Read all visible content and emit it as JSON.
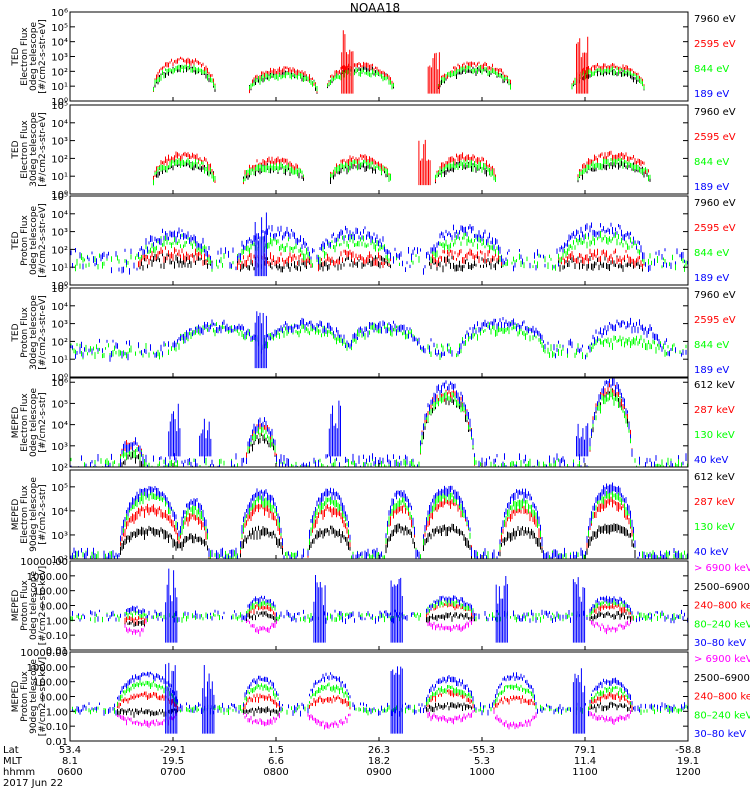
{
  "title": "NOAA18",
  "colors": {
    "black": "#000000",
    "red": "#ff0000",
    "green": "#00ff00",
    "blue": "#0000ff",
    "magenta": "#ff00ff"
  },
  "chart_data": [
    {
      "type": "line",
      "scale": "log",
      "ylabel": [
        "TED",
        "Electron Flux",
        "0deg telescope",
        "[#/cm2-s-str-eV]"
      ],
      "yticks": [
        "10⁰",
        "10¹",
        "10²",
        "10³",
        "10⁴",
        "10⁵",
        "10⁶"
      ],
      "ylim_log10": [
        0,
        6
      ],
      "series": [
        {
          "name": "7960 eV",
          "color": "black"
        },
        {
          "name": "2595 eV",
          "color": "red"
        },
        {
          "name": "844 eV",
          "color": "green"
        },
        {
          "name": "189 eV",
          "color": "blue"
        }
      ],
      "arches": [
        {
          "x": 0.185,
          "w": 0.05,
          "peak": [
            2.3,
            2.9,
            2.4,
            0
          ]
        },
        {
          "x": 0.345,
          "w": 0.055,
          "peak": [
            2.0,
            2.2,
            1.9,
            0
          ]
        },
        {
          "x": 0.47,
          "w": 0.055,
          "peak": [
            2.3,
            2.5,
            2.1,
            0
          ]
        },
        {
          "x": 0.655,
          "w": 0.06,
          "peak": [
            2.2,
            2.6,
            2.3,
            0
          ]
        },
        {
          "x": 0.87,
          "w": 0.06,
          "peak": [
            2.1,
            2.5,
            2.2,
            0
          ]
        }
      ],
      "spikes": [
        {
          "x": 0.45,
          "level": 4.8,
          "color": "red"
        },
        {
          "x": 0.83,
          "level": 5.0,
          "color": "red"
        },
        {
          "x": 0.59,
          "level": 3.6,
          "color": "red"
        }
      ],
      "floor": null,
      "noise": 0.3
    },
    {
      "type": "line",
      "scale": "log",
      "ylabel": [
        "TED",
        "Electron Flux",
        "30deg telescope",
        "[#/cm2-s-str-eV]"
      ],
      "yticks": [
        "10⁰",
        "10¹",
        "10²",
        "10³",
        "10⁴",
        "10⁵"
      ],
      "ylim_log10": [
        0,
        5
      ],
      "series": [
        {
          "name": "7960 eV",
          "color": "black"
        },
        {
          "name": "2595 eV",
          "color": "red"
        },
        {
          "name": "844 eV",
          "color": "green"
        },
        {
          "name": "189 eV",
          "color": "blue"
        }
      ],
      "arches": [
        {
          "x": 0.185,
          "w": 0.05,
          "peak": [
            1.8,
            2.3,
            1.9,
            0
          ]
        },
        {
          "x": 0.33,
          "w": 0.05,
          "peak": [
            1.6,
            2.0,
            1.7,
            0
          ]
        },
        {
          "x": 0.47,
          "w": 0.05,
          "peak": [
            1.7,
            2.1,
            1.8,
            0
          ]
        },
        {
          "x": 0.64,
          "w": 0.05,
          "peak": [
            1.7,
            2.2,
            1.8,
            0
          ]
        },
        {
          "x": 0.88,
          "w": 0.06,
          "peak": [
            1.8,
            2.3,
            1.9,
            0
          ]
        }
      ],
      "spikes": [
        {
          "x": 0.575,
          "level": 3.2,
          "color": "red"
        }
      ],
      "floor": null,
      "noise": 0.3
    },
    {
      "type": "line",
      "scale": "log",
      "ylabel": [
        "TED",
        "Proton Flux",
        "0deg telescope",
        "[#/cm2-s-str-eV]"
      ],
      "yticks": [
        "10⁰",
        "10¹",
        "10²",
        "10³",
        "10⁴",
        "10⁵"
      ],
      "ylim_log10": [
        0,
        5
      ],
      "series": [
        {
          "name": "7960 eV",
          "color": "black"
        },
        {
          "name": "2595 eV",
          "color": "red"
        },
        {
          "name": "844 eV",
          "color": "green"
        },
        {
          "name": "189 eV",
          "color": "blue"
        }
      ],
      "arches": [
        {
          "x": 0.17,
          "w": 0.06,
          "peak": [
            1.5,
            1.9,
            2.6,
            3.0
          ]
        },
        {
          "x": 0.33,
          "w": 0.06,
          "peak": [
            1.3,
            1.6,
            2.5,
            3.1
          ]
        },
        {
          "x": 0.46,
          "w": 0.06,
          "peak": [
            1.4,
            1.7,
            2.6,
            3.1
          ]
        },
        {
          "x": 0.64,
          "w": 0.06,
          "peak": [
            1.4,
            1.8,
            2.7,
            3.2
          ]
        },
        {
          "x": 0.86,
          "w": 0.07,
          "peak": [
            1.4,
            1.8,
            2.8,
            3.3
          ]
        }
      ],
      "spikes": [
        {
          "x": 0.31,
          "level": 4.2,
          "color": "blue"
        }
      ],
      "floor": 1.3,
      "noise": 0.6
    },
    {
      "type": "line",
      "scale": "log",
      "ylabel": [
        "TED",
        "Proton Flux",
        "30deg telescope",
        "[#/cm2-s-str-eV]"
      ],
      "yticks": [
        "10⁰",
        "10¹",
        "10²",
        "10³",
        "10⁴",
        "10⁵"
      ],
      "ylim_log10": [
        0,
        5
      ],
      "series": [
        {
          "name": "7960 eV",
          "color": "black"
        },
        {
          "name": "2595 eV",
          "color": "red"
        },
        {
          "name": "844 eV",
          "color": "green"
        },
        {
          "name": "189 eV",
          "color": "blue"
        }
      ],
      "arches": [
        {
          "x": 0.24,
          "w": 0.07,
          "peak": [
            0,
            0,
            2.9,
            3.0
          ]
        },
        {
          "x": 0.38,
          "w": 0.07,
          "peak": [
            0,
            0,
            2.8,
            3.1
          ]
        },
        {
          "x": 0.51,
          "w": 0.06,
          "peak": [
            0,
            0,
            2.9,
            3.0
          ]
        },
        {
          "x": 0.7,
          "w": 0.07,
          "peak": [
            0,
            0,
            2.9,
            3.2
          ]
        },
        {
          "x": 0.9,
          "w": 0.06,
          "peak": [
            0,
            0,
            2.2,
            3.1
          ]
        }
      ],
      "spikes": [
        {
          "x": 0.31,
          "level": 4.0,
          "color": "blue"
        }
      ],
      "floor": 1.5,
      "noise": 0.5
    },
    {
      "type": "line",
      "scale": "log",
      "ylabel": [
        "MEPED",
        "Electron Flux",
        "0deg telescope",
        "[#/cm2-s-str]"
      ],
      "yticks": [
        "10²",
        "10³",
        "10⁴",
        "10⁵",
        "10⁶"
      ],
      "ylim_log10": [
        2,
        6.2
      ],
      "series": [
        {
          "name": "612 keV",
          "color": "black"
        },
        {
          "name": "287 keV",
          "color": "red"
        },
        {
          "name": "130 keV",
          "color": "green"
        },
        {
          "name": "40 keV",
          "color": "blue"
        }
      ],
      "arches": [
        {
          "x": 0.1,
          "w": 0.02,
          "peak": [
            2.6,
            3.2,
            2.9,
            3.3
          ]
        },
        {
          "x": 0.31,
          "w": 0.025,
          "peak": [
            3.5,
            4.0,
            3.8,
            4.2
          ]
        },
        {
          "x": 0.61,
          "w": 0.045,
          "peak": [
            5.4,
            5.6,
            5.4,
            5.9
          ]
        },
        {
          "x": 0.875,
          "w": 0.035,
          "peak": [
            5.6,
            5.8,
            5.5,
            6.1
          ]
        }
      ],
      "spikes": [
        {
          "x": 0.17,
          "level": 5.0,
          "color": "blue"
        },
        {
          "x": 0.43,
          "level": 5.2,
          "color": "blue"
        },
        {
          "x": 0.22,
          "level": 4.3,
          "color": "blue"
        },
        {
          "x": 0.83,
          "level": 4.2,
          "color": "blue"
        }
      ],
      "floor": 2.1,
      "noise": 0.4
    },
    {
      "type": "line",
      "scale": "log",
      "ylabel": [
        "MEPED",
        "Electron Flux",
        "90deg telescope",
        "[#/cm2-s-str]"
      ],
      "yticks": [
        "10²",
        "10³",
        "10⁴",
        "10⁵"
      ],
      "ylim_log10": [
        2,
        5.7
      ],
      "series": [
        {
          "name": "612 keV",
          "color": "black"
        },
        {
          "name": "287 keV",
          "color": "red"
        },
        {
          "name": "130 keV",
          "color": "green"
        },
        {
          "name": "40 keV",
          "color": "blue"
        }
      ],
      "arches": [
        {
          "x": 0.13,
          "w": 0.05,
          "peak": [
            3.3,
            4.2,
            4.8,
            5.0
          ]
        },
        {
          "x": 0.2,
          "w": 0.025,
          "peak": [
            3.0,
            3.9,
            4.2,
            4.5
          ]
        },
        {
          "x": 0.31,
          "w": 0.035,
          "peak": [
            3.3,
            4.3,
            4.6,
            4.9
          ]
        },
        {
          "x": 0.42,
          "w": 0.035,
          "peak": [
            3.3,
            4.2,
            4.5,
            4.9
          ]
        },
        {
          "x": 0.535,
          "w": 0.025,
          "peak": [
            3.4,
            4.3,
            4.5,
            4.9
          ]
        },
        {
          "x": 0.61,
          "w": 0.04,
          "peak": [
            3.4,
            4.5,
            4.8,
            5.0
          ]
        },
        {
          "x": 0.73,
          "w": 0.035,
          "peak": [
            3.3,
            4.2,
            4.5,
            4.9
          ]
        },
        {
          "x": 0.875,
          "w": 0.04,
          "peak": [
            3.5,
            4.5,
            4.8,
            5.1
          ]
        }
      ],
      "spikes": [],
      "floor": 2.2,
      "noise": 0.2
    },
    {
      "type": "line",
      "scale": "log",
      "ylabel": [
        "MEPED",
        "Proton Flux",
        "0deg telescope",
        "[#/cm2-s-str-keV]"
      ],
      "yticks": [
        "0.01",
        "0.10",
        "1.00",
        "10.00",
        "100.00",
        "1000.00",
        "10000.00"
      ],
      "ylim_log10": [
        -2,
        4
      ],
      "series": [
        {
          "name": "> 6900 keV",
          "color": "magenta"
        },
        {
          "name": "2500–6900",
          "color": "black"
        },
        {
          "name": "240–800 keV",
          "color": "red"
        },
        {
          "name": "80–240 keV",
          "color": "green"
        },
        {
          "name": "30–80 keV",
          "color": "blue"
        }
      ],
      "arches": [
        {
          "x": 0.105,
          "w": 0.018,
          "peak": [
            -0.7,
            -0.1,
            0.2,
            0.6,
            0.9
          ]
        },
        {
          "x": 0.31,
          "w": 0.025,
          "peak": [
            -0.5,
            0.5,
            1.0,
            1.3,
            1.6
          ]
        },
        {
          "x": 0.615,
          "w": 0.04,
          "peak": [
            -0.4,
            0.4,
            1.2,
            1.4,
            1.6
          ]
        },
        {
          "x": 0.875,
          "w": 0.035,
          "peak": [
            -0.4,
            0.5,
            1.1,
            1.4,
            1.6
          ]
        }
      ],
      "spikes": [
        {
          "x": 0.165,
          "level": 3.6,
          "color": "blue"
        },
        {
          "x": 0.405,
          "level": 3.3,
          "color": "blue"
        },
        {
          "x": 0.7,
          "level": 3.4,
          "color": "blue"
        },
        {
          "x": 0.825,
          "level": 3.3,
          "color": "blue"
        },
        {
          "x": 0.53,
          "level": 2.9,
          "color": "blue"
        }
      ],
      "floor": 0.3,
      "noise": 0.3
    },
    {
      "type": "line",
      "scale": "log",
      "ylabel": [
        "MEPED",
        "Proton Flux",
        "90deg telescope",
        "[#/cm2-s-str-keV]"
      ],
      "yticks": [
        "0.01",
        "0.10",
        "1.00",
        "10.00",
        "100.00",
        "1000.00",
        "10000.00"
      ],
      "ylim_log10": [
        -2,
        4
      ],
      "series": [
        {
          "name": "> 6900 keV",
          "color": "magenta"
        },
        {
          "name": "2500–6900",
          "color": "black"
        },
        {
          "name": "240–800 keV",
          "color": "red"
        },
        {
          "name": "80–240 keV",
          "color": "green"
        },
        {
          "name": "30–80 keV",
          "color": "blue"
        }
      ],
      "arches": [
        {
          "x": 0.125,
          "w": 0.05,
          "peak": [
            -0.7,
            0.1,
            1.2,
            2.0,
            2.6
          ]
        },
        {
          "x": 0.31,
          "w": 0.03,
          "peak": [
            -0.6,
            0.2,
            1.1,
            1.8,
            2.3
          ]
        },
        {
          "x": 0.42,
          "w": 0.035,
          "peak": [
            -0.8,
            0.0,
            1.0,
            1.8,
            2.5
          ]
        },
        {
          "x": 0.615,
          "w": 0.04,
          "peak": [
            -0.4,
            0.5,
            1.4,
            1.7,
            2.3
          ]
        },
        {
          "x": 0.72,
          "w": 0.035,
          "peak": [
            -0.8,
            0.0,
            1.0,
            1.8,
            2.5
          ]
        },
        {
          "x": 0.875,
          "w": 0.035,
          "peak": [
            -0.4,
            0.5,
            1.2,
            1.6,
            2.2
          ]
        }
      ],
      "spikes": [
        {
          "x": 0.165,
          "level": 3.5,
          "color": "blue"
        },
        {
          "x": 0.225,
          "level": 3.3,
          "color": "blue"
        },
        {
          "x": 0.53,
          "level": 3.2,
          "color": "blue"
        },
        {
          "x": 0.825,
          "level": 3.3,
          "color": "blue"
        }
      ],
      "floor": 0.2,
      "noise": 0.3
    }
  ],
  "xaxis": {
    "row_labels": [
      "Lat",
      "MLT",
      "hhmm",
      "2017 Jun 22"
    ],
    "columns": [
      {
        "lat": "53.4",
        "mlt": "8.1",
        "hhmm": "0600"
      },
      {
        "lat": "-29.1",
        "mlt": "19.5",
        "hhmm": "0700"
      },
      {
        "lat": "1.5",
        "mlt": "6.6",
        "hhmm": "0800"
      },
      {
        "lat": "26.3",
        "mlt": "18.2",
        "hhmm": "0900"
      },
      {
        "lat": "-55.3",
        "mlt": "5.3",
        "hhmm": "1000"
      },
      {
        "lat": "79.1",
        "mlt": "11.4",
        "hhmm": "1100"
      },
      {
        "lat": "-58.8",
        "mlt": "19.1",
        "hhmm": "1200"
      }
    ]
  }
}
